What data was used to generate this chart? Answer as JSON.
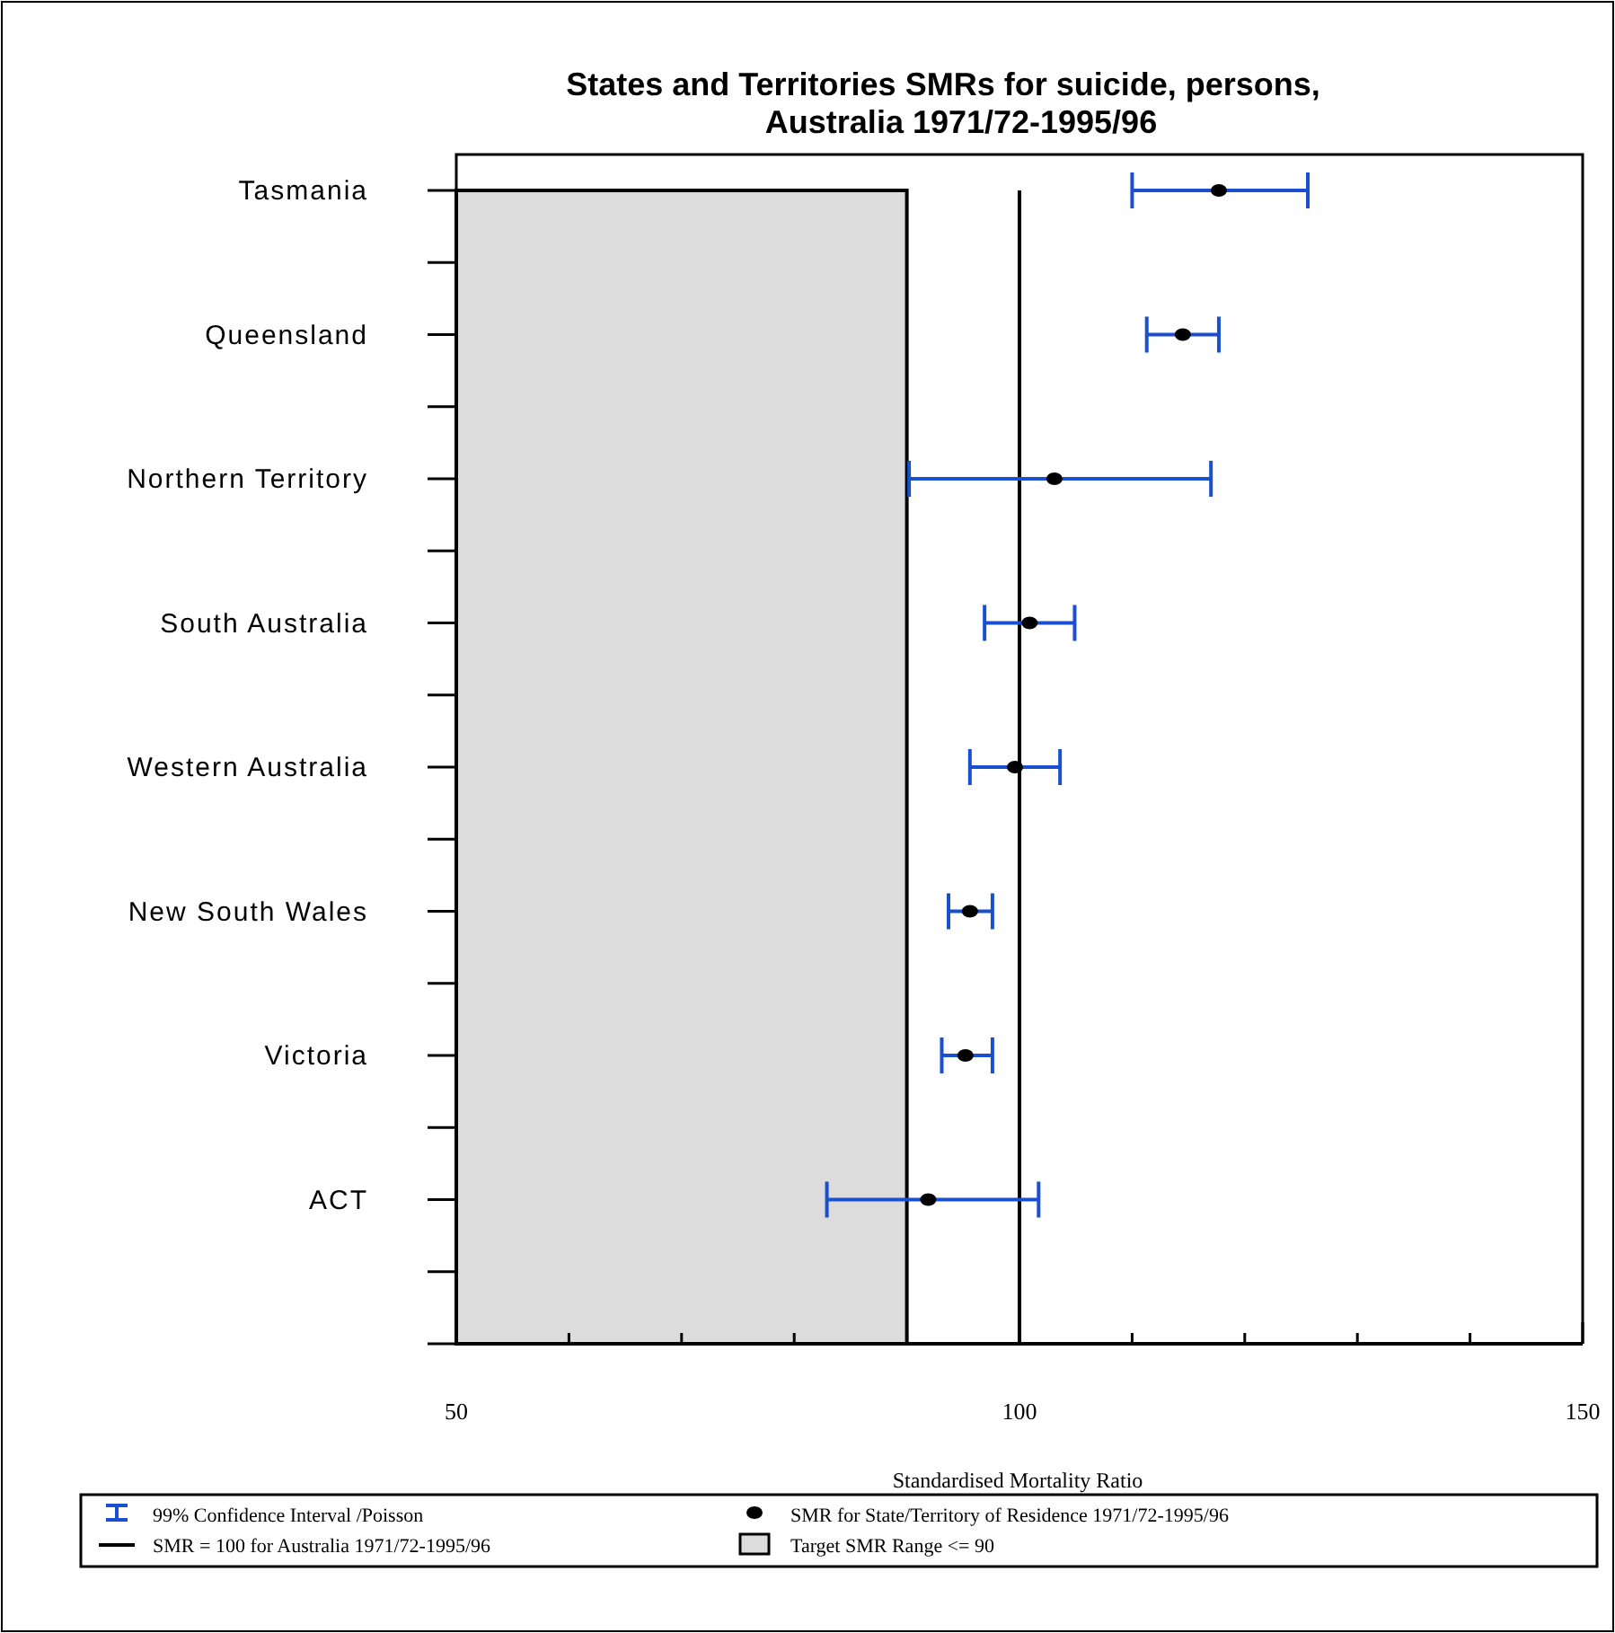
{
  "chart_data": {
    "type": "scatter",
    "orientation": "horizontal",
    "title": "States and Territories SMRs for suicide, persons,\nAustralia 1971/72-1995/96",
    "xlabel": "Standardised Mortality Ratio",
    "categories": [
      "Tasmania",
      "Queensland",
      "Northern Territory",
      "South Australia",
      "Western Australia",
      "New South Wales",
      "Victoria",
      "ACT"
    ],
    "series": [
      {
        "name": "SMR for State/Territory of Residence 1971/72-1995/96",
        "color": "#000000",
        "values": [
          117.7,
          114.5,
          103.1,
          100.9,
          99.6,
          95.6,
          95.2,
          91.9
        ],
        "errors": [
          [
            110.0,
            125.6
          ],
          [
            111.3,
            117.7
          ],
          [
            90.2,
            117.0
          ],
          [
            96.9,
            104.9
          ],
          [
            95.6,
            103.6
          ],
          [
            93.7,
            97.6
          ],
          [
            93.1,
            97.6
          ],
          [
            82.9,
            101.7
          ]
        ]
      }
    ],
    "annotations": [
      "99% Confidence Interval /Poisson"
    ],
    "xlim": [
      50,
      150
    ],
    "xticks": [
      50,
      {
        "value": 60,
        "label": null
      },
      {
        "value": 70,
        "label": null
      },
      {
        "value": 80,
        "label": null
      },
      {
        "value": 90,
        "label": null
      },
      100,
      {
        "value": 110,
        "label": null
      },
      {
        "value": 120,
        "label": null
      },
      {
        "value": 130,
        "label": null
      },
      {
        "value": 140,
        "label": null
      },
      150
    ],
    "ref_lines": [
      {
        "axis": "x",
        "value": 100,
        "label": "SMR = 100 for Australia 1971/72-1995/96",
        "color": "#000000"
      }
    ],
    "bands": [
      {
        "axis": "x",
        "from": 50,
        "to": 90,
        "label": "Target SMR Range <= 90",
        "color": "#dcdcdc"
      }
    ],
    "marker": "circle",
    "legend": "bottom"
  }
}
